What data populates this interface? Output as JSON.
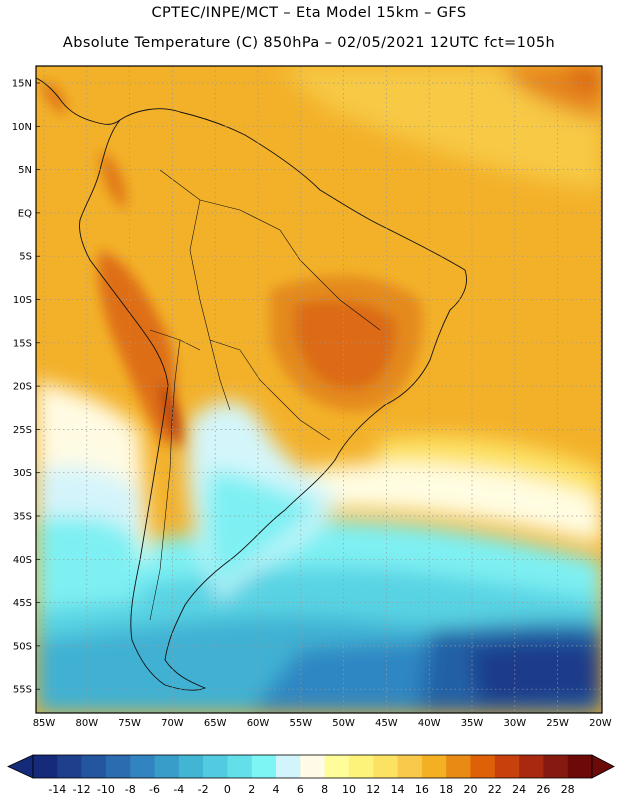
{
  "title": {
    "line1": "CPTEC/INPE/MCT –  Eta Model 15km – GFS",
    "line2": "Absolute Temperature (C) 850hPa – 02/05/2021 12UTC fct=105h"
  },
  "map": {
    "lat_labels": [
      "15N",
      "10N",
      "5N",
      "EQ",
      "5S",
      "10S",
      "15S",
      "20S",
      "25S",
      "30S",
      "35S",
      "40S",
      "45S",
      "50S",
      "55S"
    ],
    "lon_labels": [
      "85W",
      "80W",
      "75W",
      "70W",
      "65W",
      "60W",
      "55W",
      "50W",
      "45W",
      "40W",
      "35W",
      "30W",
      "25W",
      "20W"
    ],
    "gridlines": "dotted"
  },
  "colorbar": {
    "labels": [
      "-14",
      "-12",
      "-10",
      "-8",
      "-6",
      "-4",
      "-2",
      "0",
      "2",
      "4",
      "6",
      "8",
      "10",
      "12",
      "14",
      "16",
      "18",
      "20",
      "22",
      "24",
      "26",
      "28"
    ],
    "colors": [
      "#152a78",
      "#1d3f8c",
      "#2456a0",
      "#2b6cb1",
      "#3284c1",
      "#399dc9",
      "#43b5d4",
      "#52cbe0",
      "#62dfe9",
      "#7df5f5",
      "#d2f4fb",
      "#fffbe6",
      "#fffd9a",
      "#fef37a",
      "#fce262",
      "#f8c94a",
      "#f2b022",
      "#e88a13",
      "#de6107",
      "#c8400c",
      "#a82810",
      "#861a10",
      "#6c0a0a"
    ]
  }
}
